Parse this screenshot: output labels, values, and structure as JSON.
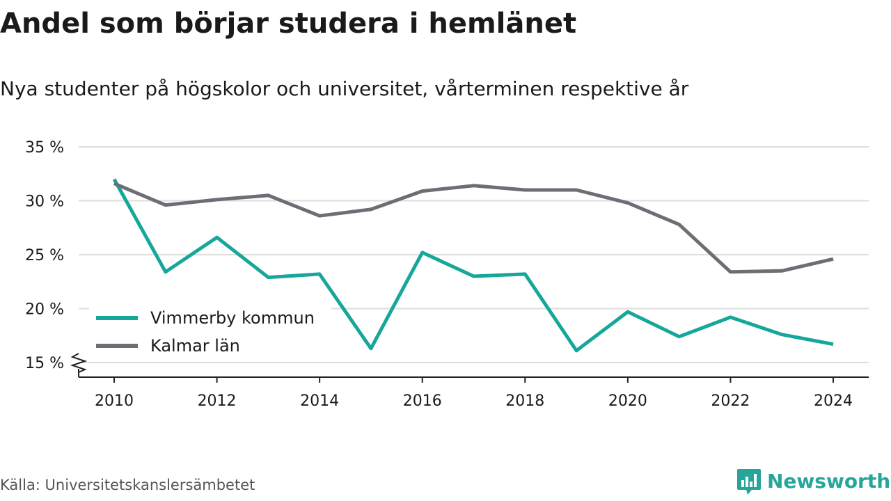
{
  "header": {
    "title": "Andel som börjar studera i hemlänet",
    "subtitle": "Nya studenter på högskolor och universitet, vårterminen respektive år"
  },
  "footer": {
    "source": "Källa: Universitetskanslersämbetet",
    "brand": "Newsworthy",
    "brand_icon": "bar-chart-speech-bubble-icon"
  },
  "colors": {
    "vimmerby": "#16a79b",
    "kalmar": "#6e6d75",
    "grid": "#dddddd",
    "axis": "#222222",
    "brand": "#26a69a"
  },
  "chart_data": {
    "type": "line",
    "x": [
      2010,
      2011,
      2012,
      2013,
      2014,
      2015,
      2016,
      2017,
      2018,
      2019,
      2020,
      2021,
      2022,
      2023,
      2024
    ],
    "series": [
      {
        "name": "Vimmerby kommun",
        "color": "#16a79b",
        "values": [
          32.0,
          23.4,
          26.6,
          22.9,
          23.2,
          16.3,
          25.2,
          23.0,
          23.2,
          16.1,
          19.7,
          17.4,
          19.2,
          17.6,
          16.7
        ]
      },
      {
        "name": "Kalmar län",
        "color": "#6e6d75",
        "values": [
          31.6,
          29.6,
          30.1,
          30.5,
          28.6,
          29.2,
          30.9,
          31.4,
          31.0,
          31.0,
          29.8,
          27.8,
          23.4,
          23.5,
          24.6
        ]
      }
    ],
    "yticks": [
      15,
      20,
      25,
      30,
      35
    ],
    "ytick_labels": [
      "15 %",
      "20 %",
      "25 %",
      "30 %",
      "35 %"
    ],
    "xticks": [
      2010,
      2012,
      2014,
      2016,
      2018,
      2020,
      2022,
      2024
    ],
    "xtick_labels": [
      "2010",
      "2012",
      "2014",
      "2016",
      "2018",
      "2020",
      "2022",
      "2024"
    ],
    "ylim": [
      15,
      35
    ],
    "xlim": [
      2010,
      2024
    ],
    "y_axis_break": true,
    "grid": "horizontal",
    "legend_position": "bottom-left"
  }
}
